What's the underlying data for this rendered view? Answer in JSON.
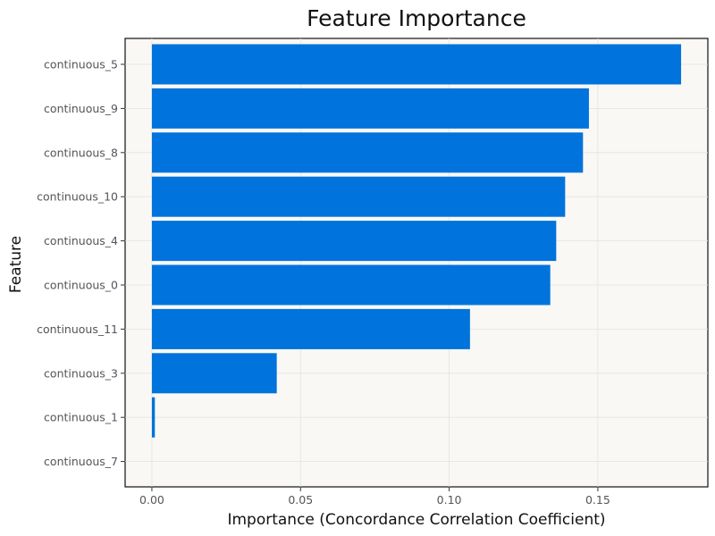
{
  "chart_data": {
    "type": "bar",
    "orientation": "horizontal",
    "title": "Feature Importance",
    "xlabel": "Importance (Concordance Correlation Coefficient)",
    "ylabel": "Feature",
    "categories": [
      "continuous_5",
      "continuous_9",
      "continuous_8",
      "continuous_10",
      "continuous_4",
      "continuous_0",
      "continuous_11",
      "continuous_3",
      "continuous_1",
      "continuous_7"
    ],
    "values": [
      0.178,
      0.147,
      0.145,
      0.139,
      0.136,
      0.134,
      0.107,
      0.042,
      0.001,
      0.0
    ],
    "xlim": [
      -0.009,
      0.187
    ],
    "xticks": [
      0.0,
      0.05,
      0.1,
      0.15
    ],
    "xtick_labels": [
      "0.00",
      "0.05",
      "0.10",
      "0.15"
    ],
    "grid": true,
    "colors": {
      "bar": "#0073dc",
      "panel_background": "#f9f8f4",
      "grid": "#e3e3e3"
    }
  }
}
